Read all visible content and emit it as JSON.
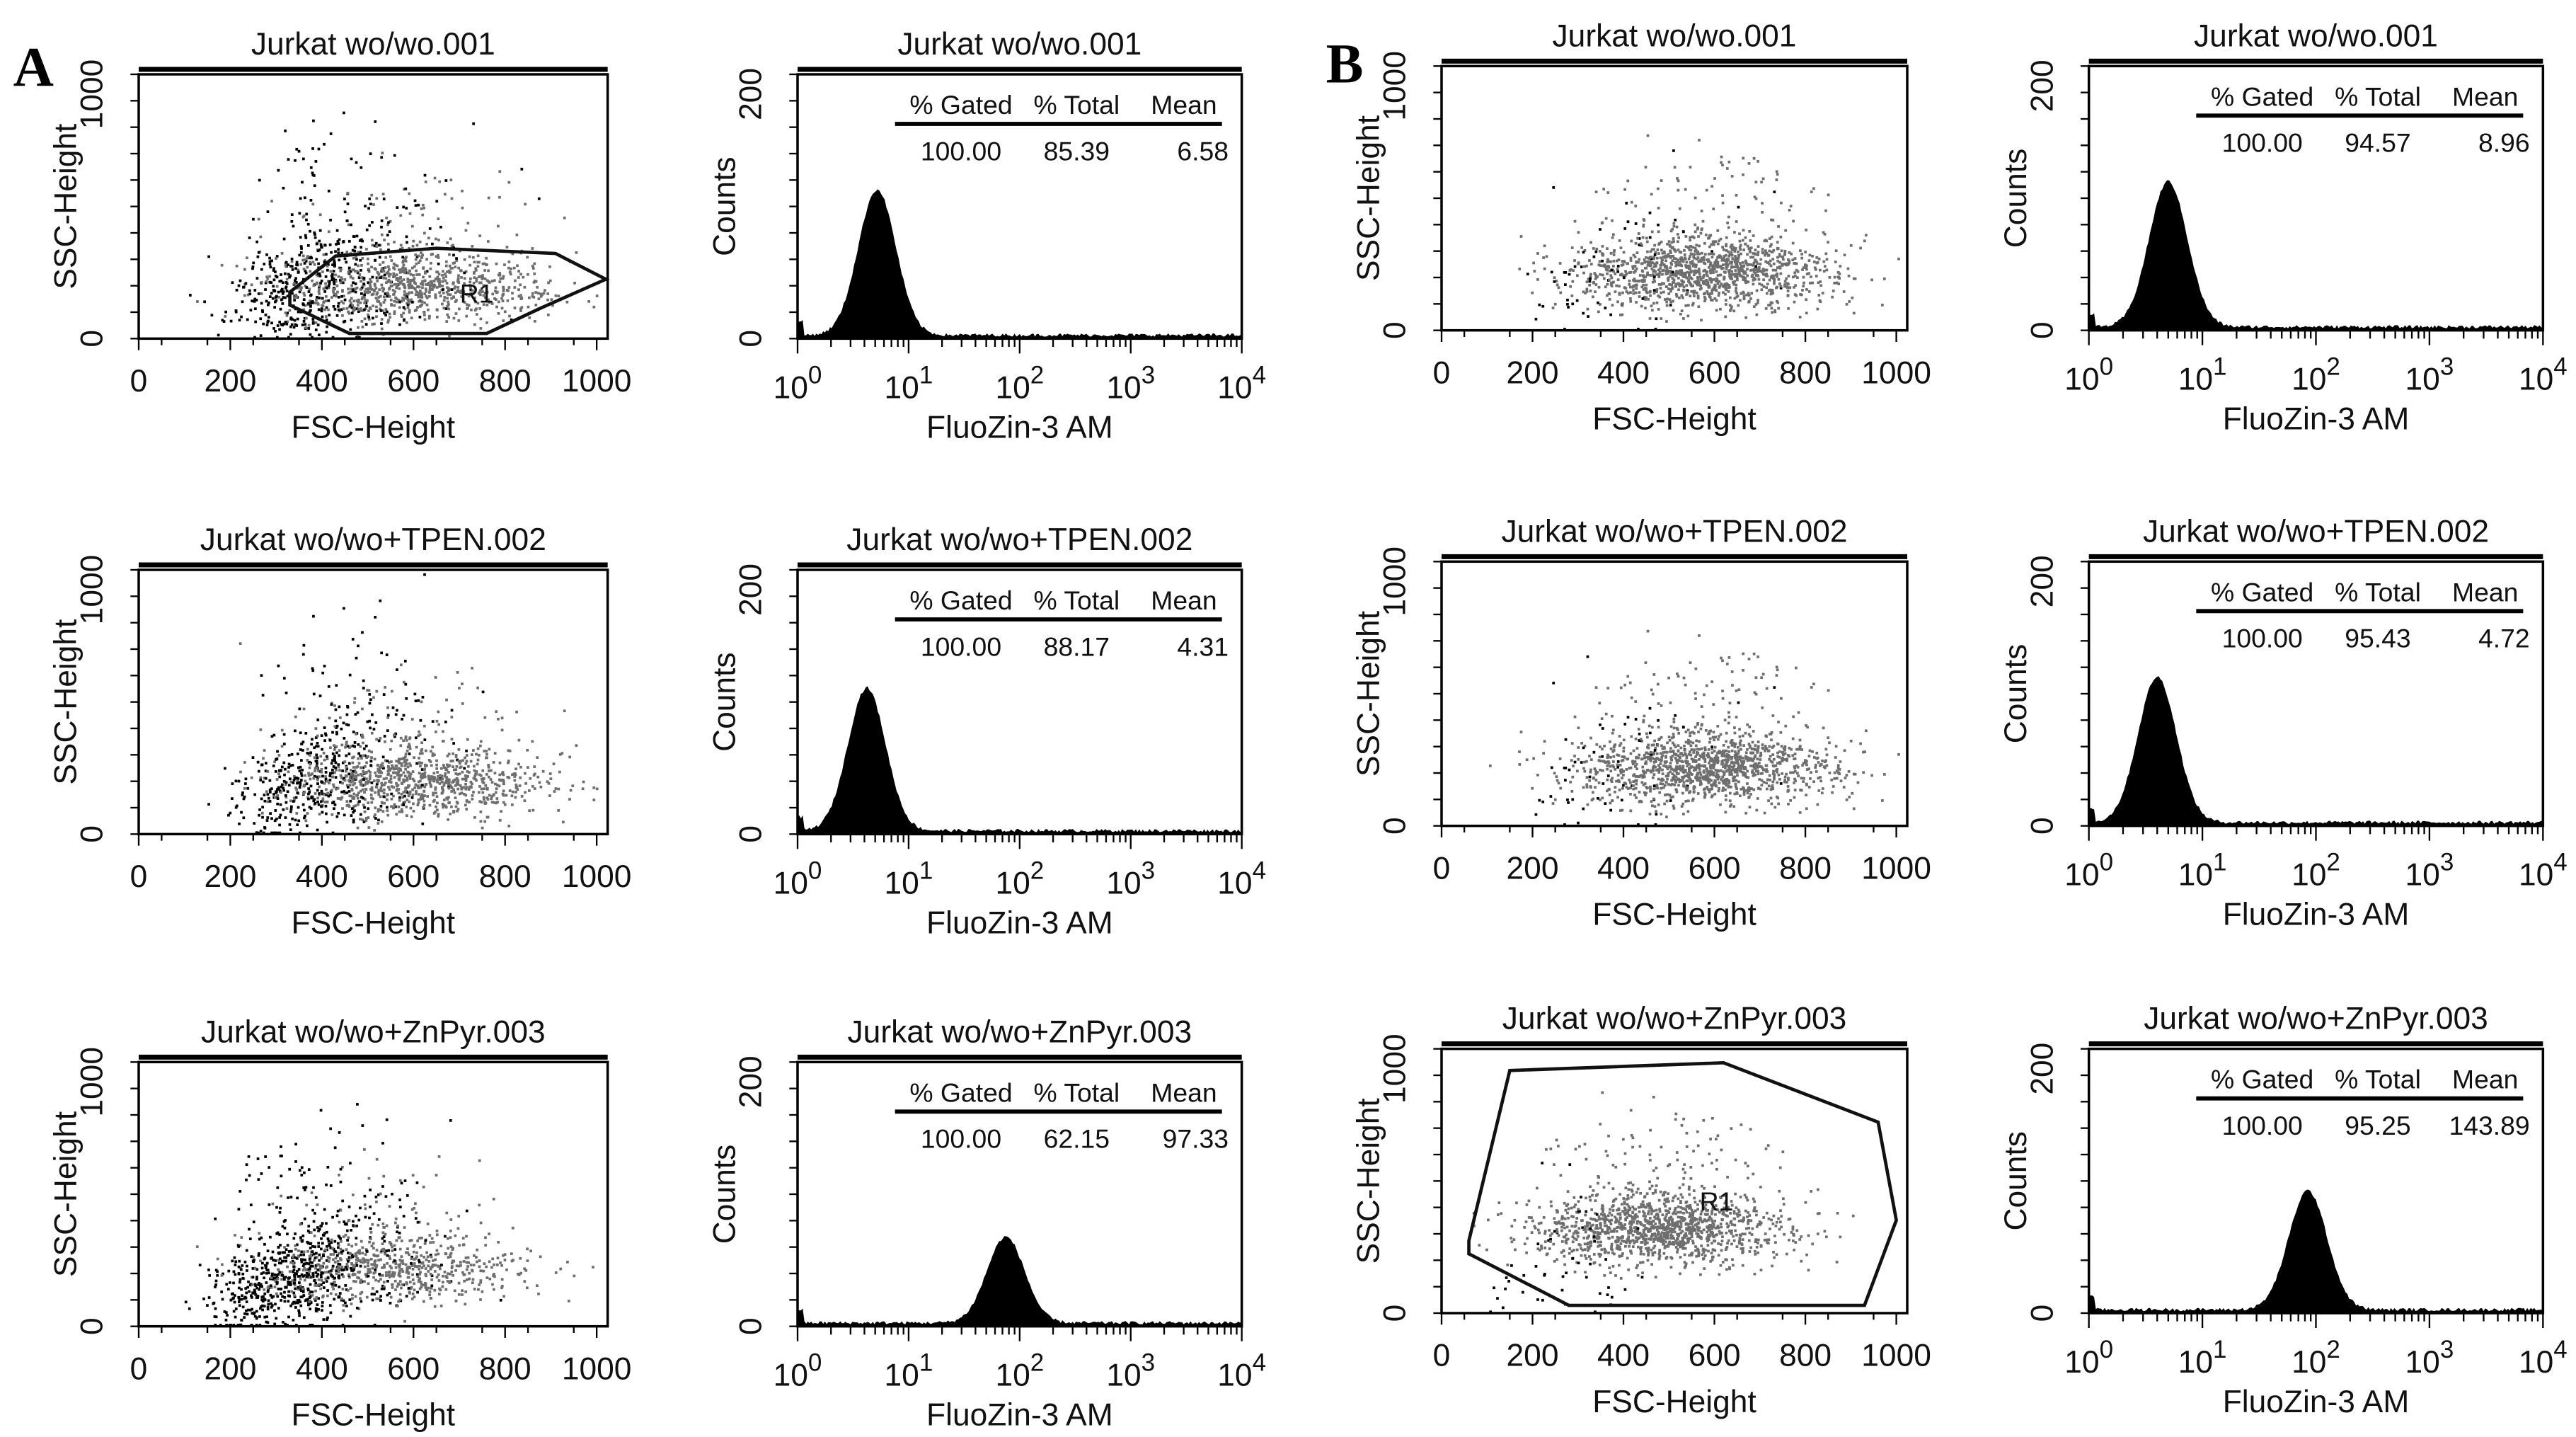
{
  "panel_letters": [
    "A",
    "B"
  ],
  "chart_data": [
    {
      "type": "scatter",
      "group": "A",
      "row": 0,
      "title": "Jurkat wo/wo.001",
      "xlabel": "FSC-Height",
      "ylabel": "SSC-Height",
      "xlim": [
        0,
        1024
      ],
      "ylim": [
        0,
        1024
      ],
      "xticks": [
        "0",
        "200",
        "400",
        "600",
        "800",
        "1000"
      ],
      "yticks": [
        "0",
        "1000"
      ],
      "gate": {
        "label": "R1",
        "points": [
          [
            330,
            180
          ],
          [
            430,
            320
          ],
          [
            650,
            350
          ],
          [
            910,
            330
          ],
          [
            1020,
            230
          ],
          [
            880,
            120
          ],
          [
            760,
            20
          ],
          [
            460,
            20
          ],
          [
            330,
            130
          ]
        ]
      },
      "gray_center": [
        600,
        200
      ],
      "black_fraction": 0.35
    },
    {
      "type": "histogram",
      "group": "A",
      "row": 0,
      "title": "Jurkat wo/wo.001",
      "xlabel": "FluoZin-3 AM",
      "ylabel": "Counts",
      "xscale": "log",
      "xticks": [
        "10^0",
        "10^1",
        "10^2",
        "10^3",
        "10^4"
      ],
      "yticks": [
        "0",
        "200"
      ],
      "ylim": [
        0,
        200
      ],
      "peak_position": 5.2,
      "peak_count": 110,
      "stats": {
        "headers": [
          "% Gated",
          "% Total",
          "Mean"
        ],
        "values": [
          "100.00",
          "85.39",
          "6.58"
        ]
      }
    },
    {
      "type": "scatter",
      "group": "B",
      "row": 0,
      "title": "Jurkat wo/wo.001",
      "xlabel": "FSC-Height",
      "ylabel": "SSC-Height",
      "xlim": [
        0,
        1024
      ],
      "ylim": [
        0,
        1024
      ],
      "xticks": [
        "0",
        "200",
        "400",
        "600",
        "800",
        "1000"
      ],
      "yticks": [
        "0",
        "1000"
      ],
      "gray_center": [
        580,
        230
      ],
      "black_fraction": 0.04
    },
    {
      "type": "histogram",
      "group": "B",
      "row": 0,
      "title": "Jurkat wo/wo.001",
      "xlabel": "FluoZin-3 AM",
      "ylabel": "Counts",
      "xscale": "log",
      "xticks": [
        "10^0",
        "10^1",
        "10^2",
        "10^3",
        "10^4"
      ],
      "yticks": [
        "0",
        "200"
      ],
      "ylim": [
        0,
        200
      ],
      "peak_position": 5.0,
      "peak_count": 110,
      "stats": {
        "headers": [
          "% Gated",
          "% Total",
          "Mean"
        ],
        "values": [
          "100.00",
          "94.57",
          "8.96"
        ]
      }
    },
    {
      "type": "scatter",
      "group": "A",
      "row": 1,
      "title": "Jurkat wo/wo+TPEN.002",
      "xlabel": "FSC-Height",
      "ylabel": "SSC-Height",
      "xlim": [
        0,
        1024
      ],
      "ylim": [
        0,
        1024
      ],
      "xticks": [
        "0",
        "200",
        "400",
        "600",
        "800",
        "1000"
      ],
      "yticks": [
        "0",
        "1000"
      ],
      "gray_center": [
        600,
        210
      ],
      "black_fraction": 0.3
    },
    {
      "type": "histogram",
      "group": "A",
      "row": 1,
      "title": "Jurkat wo/wo+TPEN.002",
      "xlabel": "FluoZin-3 AM",
      "ylabel": "Counts",
      "xscale": "log",
      "xticks": [
        "10^0",
        "10^1",
        "10^2",
        "10^3",
        "10^4"
      ],
      "yticks": [
        "0",
        "200"
      ],
      "ylim": [
        0,
        200
      ],
      "peak_position": 4.2,
      "peak_count": 108,
      "stats": {
        "headers": [
          "% Gated",
          "% Total",
          "Mean"
        ],
        "values": [
          "100.00",
          "88.17",
          "4.31"
        ]
      }
    },
    {
      "type": "scatter",
      "group": "B",
      "row": 1,
      "title": "Jurkat wo/wo+TPEN.002",
      "xlabel": "FSC-Height",
      "ylabel": "SSC-Height",
      "xlim": [
        0,
        1024
      ],
      "ylim": [
        0,
        1024
      ],
      "xticks": [
        "0",
        "200",
        "400",
        "600",
        "800",
        "1000"
      ],
      "yticks": [
        "0",
        "1000"
      ],
      "gray_center": [
        580,
        230
      ],
      "black_fraction": 0.04
    },
    {
      "type": "histogram",
      "group": "B",
      "row": 1,
      "title": "Jurkat wo/wo+TPEN.002",
      "xlabel": "FluoZin-3 AM",
      "ylabel": "Counts",
      "xscale": "log",
      "xticks": [
        "10^0",
        "10^1",
        "10^2",
        "10^3",
        "10^4"
      ],
      "yticks": [
        "0",
        "200"
      ],
      "ylim": [
        0,
        200
      ],
      "peak_position": 4.0,
      "peak_count": 110,
      "stats": {
        "headers": [
          "% Gated",
          "% Total",
          "Mean"
        ],
        "values": [
          "100.00",
          "95.43",
          "4.72"
        ]
      }
    },
    {
      "type": "scatter",
      "group": "A",
      "row": 2,
      "title": "Jurkat wo/wo+ZnPyr.003",
      "xlabel": "FSC-Height",
      "ylabel": "SSC-Height",
      "xlim": [
        0,
        1024
      ],
      "ylim": [
        0,
        1024
      ],
      "xticks": [
        "0",
        "200",
        "400",
        "600",
        "800",
        "1000"
      ],
      "yticks": [
        "0",
        "1000"
      ],
      "gray_center": [
        550,
        230
      ],
      "black_fraction": 0.5
    },
    {
      "type": "histogram",
      "group": "A",
      "row": 2,
      "title": "Jurkat wo/wo+ZnPyr.003",
      "xlabel": "FluoZin-3 AM",
      "ylabel": "Counts",
      "xscale": "log",
      "xticks": [
        "10^0",
        "10^1",
        "10^2",
        "10^3",
        "10^4"
      ],
      "yticks": [
        "0",
        "200"
      ],
      "ylim": [
        0,
        200
      ],
      "peak_position": 75,
      "peak_count": 65,
      "stats": {
        "headers": [
          "% Gated",
          "% Total",
          "Mean"
        ],
        "values": [
          "100.00",
          "62.15",
          "97.33"
        ]
      }
    },
    {
      "type": "scatter",
      "group": "B",
      "row": 2,
      "title": "Jurkat wo/wo+ZnPyr.003",
      "xlabel": "FSC-Height",
      "ylabel": "SSC-Height",
      "xlim": [
        0,
        1024
      ],
      "ylim": [
        0,
        1024
      ],
      "xticks": [
        "0",
        "200",
        "400",
        "600",
        "800",
        "1000"
      ],
      "yticks": [
        "0",
        "1000"
      ],
      "gate": {
        "label": "R1",
        "points": [
          [
            60,
            280
          ],
          [
            150,
            940
          ],
          [
            620,
            970
          ],
          [
            960,
            740
          ],
          [
            1000,
            360
          ],
          [
            930,
            30
          ],
          [
            280,
            30
          ],
          [
            60,
            230
          ]
        ]
      },
      "gray_center": [
        480,
        330
      ],
      "black_fraction": 0.03
    },
    {
      "type": "histogram",
      "group": "B",
      "row": 2,
      "title": "Jurkat wo/wo+ZnPyr.003",
      "xlabel": "FluoZin-3 AM",
      "ylabel": "Counts",
      "xscale": "log",
      "xticks": [
        "10^0",
        "10^1",
        "10^2",
        "10^3",
        "10^4"
      ],
      "yticks": [
        "0",
        "200"
      ],
      "ylim": [
        0,
        200
      ],
      "peak_position": 85,
      "peak_count": 90,
      "stats": {
        "headers": [
          "% Gated",
          "% Total",
          "Mean"
        ],
        "values": [
          "100.00",
          "95.25",
          "143.89"
        ]
      }
    }
  ]
}
